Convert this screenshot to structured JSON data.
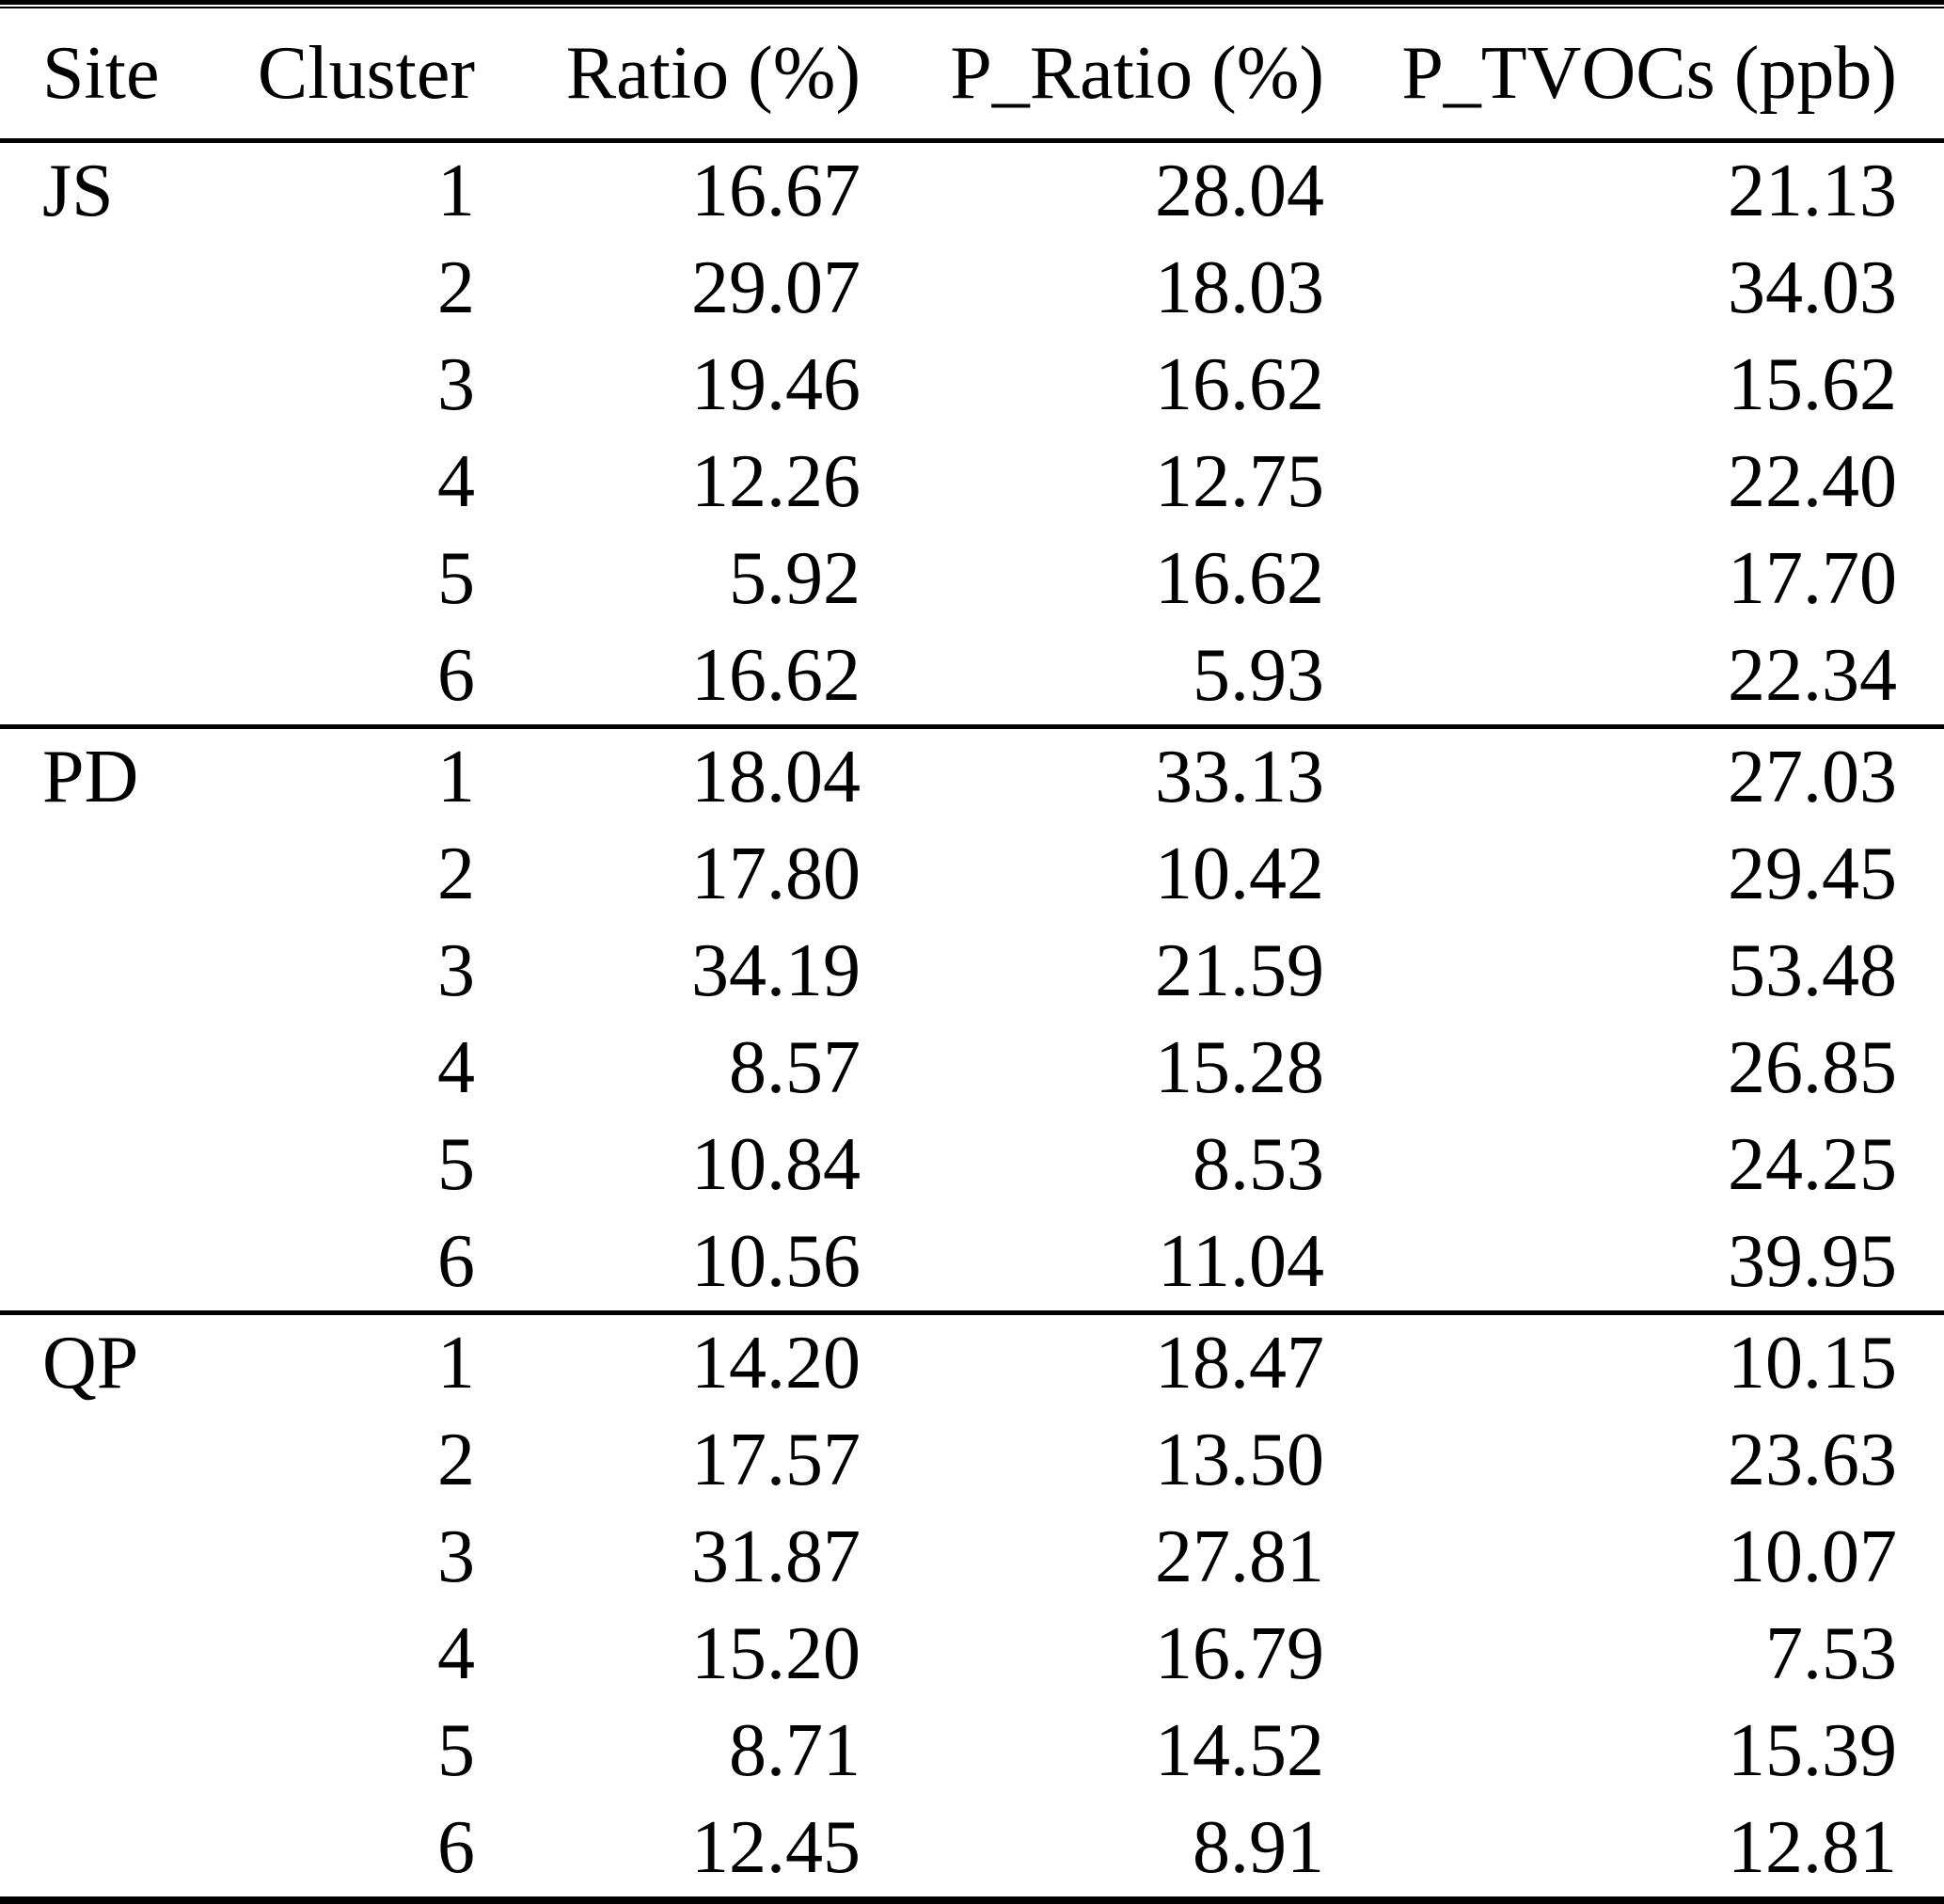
{
  "table": {
    "columns": [
      "Site",
      "Cluster",
      "Ratio (%)",
      "P_Ratio (%)",
      "P_TVOCs (ppb)"
    ],
    "sections": [
      {
        "site": "JS",
        "rows": [
          {
            "cluster": "1",
            "ratio": "16.67",
            "p_ratio": "28.04",
            "p_tvocs": "21.13"
          },
          {
            "cluster": "2",
            "ratio": "29.07",
            "p_ratio": "18.03",
            "p_tvocs": "34.03"
          },
          {
            "cluster": "3",
            "ratio": "19.46",
            "p_ratio": "16.62",
            "p_tvocs": "15.62"
          },
          {
            "cluster": "4",
            "ratio": "12.26",
            "p_ratio": "12.75",
            "p_tvocs": "22.40"
          },
          {
            "cluster": "5",
            "ratio": "5.92",
            "p_ratio": "16.62",
            "p_tvocs": "17.70"
          },
          {
            "cluster": "6",
            "ratio": "16.62",
            "p_ratio": "5.93",
            "p_tvocs": "22.34"
          }
        ]
      },
      {
        "site": "PD",
        "rows": [
          {
            "cluster": "1",
            "ratio": "18.04",
            "p_ratio": "33.13",
            "p_tvocs": "27.03"
          },
          {
            "cluster": "2",
            "ratio": "17.80",
            "p_ratio": "10.42",
            "p_tvocs": "29.45"
          },
          {
            "cluster": "3",
            "ratio": "34.19",
            "p_ratio": "21.59",
            "p_tvocs": "53.48"
          },
          {
            "cluster": "4",
            "ratio": "8.57",
            "p_ratio": "15.28",
            "p_tvocs": "26.85"
          },
          {
            "cluster": "5",
            "ratio": "10.84",
            "p_ratio": "8.53",
            "p_tvocs": "24.25"
          },
          {
            "cluster": "6",
            "ratio": "10.56",
            "p_ratio": "11.04",
            "p_tvocs": "39.95"
          }
        ]
      },
      {
        "site": "QP",
        "rows": [
          {
            "cluster": "1",
            "ratio": "14.20",
            "p_ratio": "18.47",
            "p_tvocs": "10.15"
          },
          {
            "cluster": "2",
            "ratio": "17.57",
            "p_ratio": "13.50",
            "p_tvocs": "23.63"
          },
          {
            "cluster": "3",
            "ratio": "31.87",
            "p_ratio": "27.81",
            "p_tvocs": "10.07"
          },
          {
            "cluster": "4",
            "ratio": "15.20",
            "p_ratio": "16.79",
            "p_tvocs": "7.53"
          },
          {
            "cluster": "5",
            "ratio": "8.71",
            "p_ratio": "14.52",
            "p_tvocs": "15.39"
          },
          {
            "cluster": "6",
            "ratio": "12.45",
            "p_ratio": "8.91",
            "p_tvocs": "12.81"
          }
        ]
      }
    ]
  },
  "colors": {
    "text": "#000000",
    "background": "#ffffff",
    "rule": "#000000"
  },
  "chart_data": {
    "type": "table",
    "columns": [
      "Site",
      "Cluster",
      "Ratio (%)",
      "P_Ratio (%)",
      "P_TVOCs (ppb)"
    ],
    "rows": [
      [
        "JS",
        1,
        16.67,
        28.04,
        21.13
      ],
      [
        "JS",
        2,
        29.07,
        18.03,
        34.03
      ],
      [
        "JS",
        3,
        19.46,
        16.62,
        15.62
      ],
      [
        "JS",
        4,
        12.26,
        12.75,
        22.4
      ],
      [
        "JS",
        5,
        5.92,
        16.62,
        17.7
      ],
      [
        "JS",
        6,
        16.62,
        5.93,
        22.34
      ],
      [
        "PD",
        1,
        18.04,
        33.13,
        27.03
      ],
      [
        "PD",
        2,
        17.8,
        10.42,
        29.45
      ],
      [
        "PD",
        3,
        34.19,
        21.59,
        53.48
      ],
      [
        "PD",
        4,
        8.57,
        15.28,
        26.85
      ],
      [
        "PD",
        5,
        10.84,
        8.53,
        24.25
      ],
      [
        "PD",
        6,
        10.56,
        11.04,
        39.95
      ],
      [
        "QP",
        1,
        14.2,
        18.47,
        10.15
      ],
      [
        "QP",
        2,
        17.57,
        13.5,
        23.63
      ],
      [
        "QP",
        3,
        31.87,
        27.81,
        10.07
      ],
      [
        "QP",
        4,
        15.2,
        16.79,
        7.53
      ],
      [
        "QP",
        5,
        8.71,
        14.52,
        15.39
      ],
      [
        "QP",
        6,
        12.45,
        8.91,
        12.81
      ]
    ]
  }
}
